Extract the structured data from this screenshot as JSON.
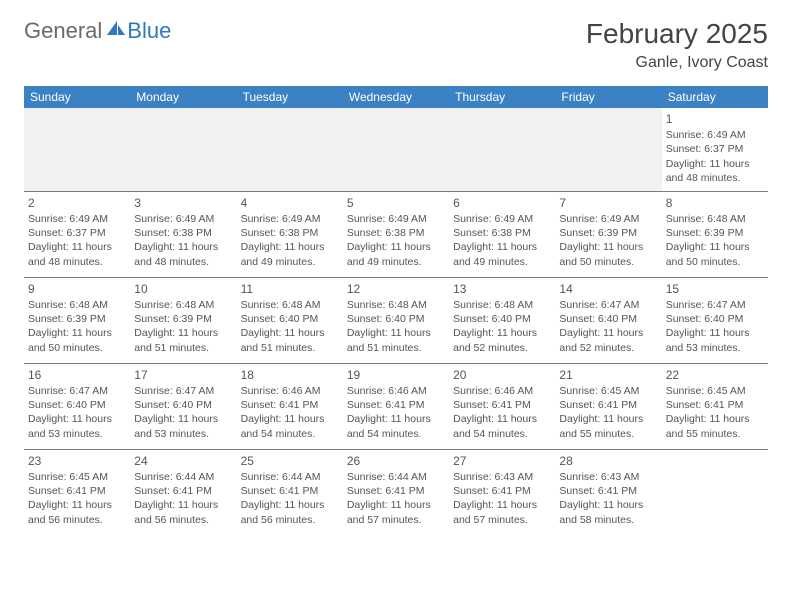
{
  "logo": {
    "text1": "General",
    "text2": "Blue"
  },
  "title": "February 2025",
  "location": "Ganle, Ivory Coast",
  "colors": {
    "header_bg": "#3a82c4",
    "header_text": "#ffffff",
    "logo_gray": "#6a6a6a",
    "logo_blue": "#2f78bd",
    "text": "#555555",
    "rule": "#7a7a7a",
    "blank_row_bg": "#f1f1f1"
  },
  "weekdays": [
    "Sunday",
    "Monday",
    "Tuesday",
    "Wednesday",
    "Thursday",
    "Friday",
    "Saturday"
  ],
  "weeks": [
    [
      null,
      null,
      null,
      null,
      null,
      null,
      {
        "n": "1",
        "sr": "6:49 AM",
        "ss": "6:37 PM",
        "dl": "11 hours and 48 minutes."
      }
    ],
    [
      {
        "n": "2",
        "sr": "6:49 AM",
        "ss": "6:37 PM",
        "dl": "11 hours and 48 minutes."
      },
      {
        "n": "3",
        "sr": "6:49 AM",
        "ss": "6:38 PM",
        "dl": "11 hours and 48 minutes."
      },
      {
        "n": "4",
        "sr": "6:49 AM",
        "ss": "6:38 PM",
        "dl": "11 hours and 49 minutes."
      },
      {
        "n": "5",
        "sr": "6:49 AM",
        "ss": "6:38 PM",
        "dl": "11 hours and 49 minutes."
      },
      {
        "n": "6",
        "sr": "6:49 AM",
        "ss": "6:38 PM",
        "dl": "11 hours and 49 minutes."
      },
      {
        "n": "7",
        "sr": "6:49 AM",
        "ss": "6:39 PM",
        "dl": "11 hours and 50 minutes."
      },
      {
        "n": "8",
        "sr": "6:48 AM",
        "ss": "6:39 PM",
        "dl": "11 hours and 50 minutes."
      }
    ],
    [
      {
        "n": "9",
        "sr": "6:48 AM",
        "ss": "6:39 PM",
        "dl": "11 hours and 50 minutes."
      },
      {
        "n": "10",
        "sr": "6:48 AM",
        "ss": "6:39 PM",
        "dl": "11 hours and 51 minutes."
      },
      {
        "n": "11",
        "sr": "6:48 AM",
        "ss": "6:40 PM",
        "dl": "11 hours and 51 minutes."
      },
      {
        "n": "12",
        "sr": "6:48 AM",
        "ss": "6:40 PM",
        "dl": "11 hours and 51 minutes."
      },
      {
        "n": "13",
        "sr": "6:48 AM",
        "ss": "6:40 PM",
        "dl": "11 hours and 52 minutes."
      },
      {
        "n": "14",
        "sr": "6:47 AM",
        "ss": "6:40 PM",
        "dl": "11 hours and 52 minutes."
      },
      {
        "n": "15",
        "sr": "6:47 AM",
        "ss": "6:40 PM",
        "dl": "11 hours and 53 minutes."
      }
    ],
    [
      {
        "n": "16",
        "sr": "6:47 AM",
        "ss": "6:40 PM",
        "dl": "11 hours and 53 minutes."
      },
      {
        "n": "17",
        "sr": "6:47 AM",
        "ss": "6:40 PM",
        "dl": "11 hours and 53 minutes."
      },
      {
        "n": "18",
        "sr": "6:46 AM",
        "ss": "6:41 PM",
        "dl": "11 hours and 54 minutes."
      },
      {
        "n": "19",
        "sr": "6:46 AM",
        "ss": "6:41 PM",
        "dl": "11 hours and 54 minutes."
      },
      {
        "n": "20",
        "sr": "6:46 AM",
        "ss": "6:41 PM",
        "dl": "11 hours and 54 minutes."
      },
      {
        "n": "21",
        "sr": "6:45 AM",
        "ss": "6:41 PM",
        "dl": "11 hours and 55 minutes."
      },
      {
        "n": "22",
        "sr": "6:45 AM",
        "ss": "6:41 PM",
        "dl": "11 hours and 55 minutes."
      }
    ],
    [
      {
        "n": "23",
        "sr": "6:45 AM",
        "ss": "6:41 PM",
        "dl": "11 hours and 56 minutes."
      },
      {
        "n": "24",
        "sr": "6:44 AM",
        "ss": "6:41 PM",
        "dl": "11 hours and 56 minutes."
      },
      {
        "n": "25",
        "sr": "6:44 AM",
        "ss": "6:41 PM",
        "dl": "11 hours and 56 minutes."
      },
      {
        "n": "26",
        "sr": "6:44 AM",
        "ss": "6:41 PM",
        "dl": "11 hours and 57 minutes."
      },
      {
        "n": "27",
        "sr": "6:43 AM",
        "ss": "6:41 PM",
        "dl": "11 hours and 57 minutes."
      },
      {
        "n": "28",
        "sr": "6:43 AM",
        "ss": "6:41 PM",
        "dl": "11 hours and 58 minutes."
      },
      null
    ]
  ],
  "labels": {
    "sunrise": "Sunrise:",
    "sunset": "Sunset:",
    "daylight": "Daylight:"
  }
}
